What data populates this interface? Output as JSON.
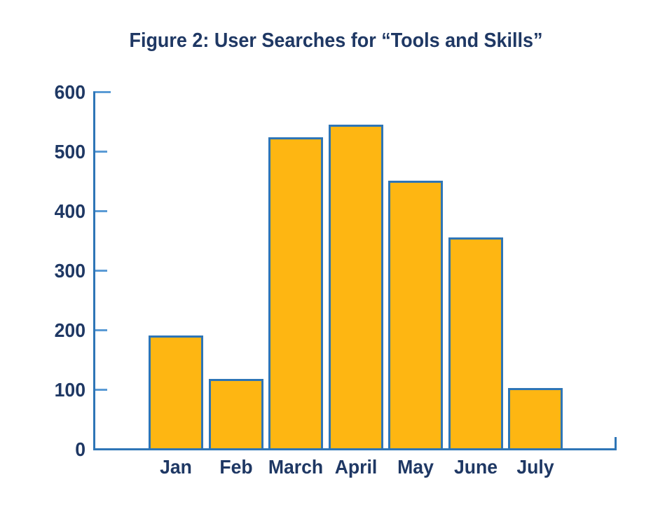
{
  "chart_data": {
    "type": "bar",
    "title": "Figure 2: User Searches for “Tools and Skills”",
    "categories": [
      "Jan",
      "Feb",
      "March",
      "April",
      "May",
      "June",
      "July"
    ],
    "values": [
      190,
      118,
      523,
      545,
      450,
      355,
      102
    ],
    "xlabel": "",
    "ylabel": "",
    "ylim": [
      0,
      600
    ],
    "yticks": [
      0,
      100,
      200,
      300,
      400,
      500,
      600
    ],
    "ytick_interval": 100,
    "grid": false,
    "legend": false,
    "colors": {
      "bar_fill": "#FEB612",
      "bar_border": "#2E75B6",
      "axis_line": "#2E75B6",
      "tick_mark": "#5B9BD5",
      "text": "#1F3864",
      "background": "#FFFFFF"
    }
  }
}
